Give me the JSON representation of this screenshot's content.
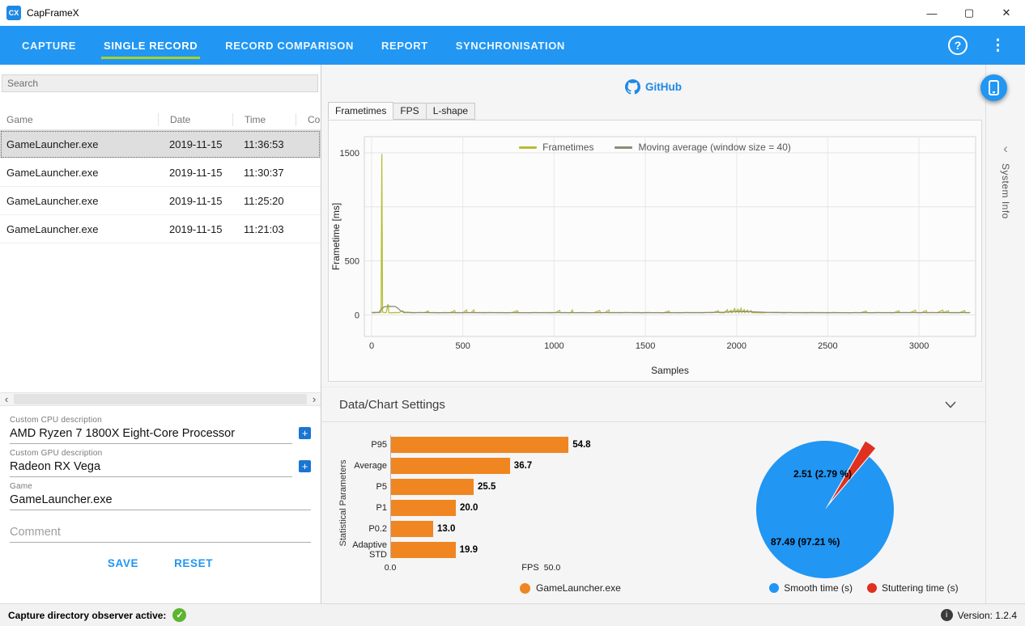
{
  "window": {
    "title": "CapFrameX",
    "icon_text": "CX"
  },
  "icons": {
    "minimize": "—",
    "maximize": "▢",
    "close": "✕",
    "help": "?",
    "menu": "⋮",
    "plus": "+",
    "scroll_left": "‹",
    "scroll_right": "›",
    "collapse_left": "‹",
    "check": "✓",
    "info": "i"
  },
  "colors": {
    "nav_blue": "#2196f3",
    "active_underline": "#a8d324",
    "link_blue": "#1e88e5",
    "bar_orange": "#ef8621",
    "pie_blue": "#2196f3",
    "pie_red": "#e03020",
    "frametimes_line": "#b6bd38",
    "moving_avg_line": "#8d8b78"
  },
  "nav": {
    "tabs": [
      {
        "label": "CAPTURE",
        "active": false
      },
      {
        "label": "SINGLE RECORD",
        "active": true
      },
      {
        "label": "RECORD COMPARISON",
        "active": false
      },
      {
        "label": "REPORT",
        "active": false
      },
      {
        "label": "SYNCHRONISATION",
        "active": false
      }
    ]
  },
  "sidebar": {
    "search_placeholder": "Search",
    "table": {
      "columns": [
        "Game",
        "Date",
        "Time",
        "Co"
      ],
      "rows": [
        {
          "game": "GameLauncher.exe",
          "date": "2019-11-15",
          "time": "11:36:53",
          "selected": true
        },
        {
          "game": "GameLauncher.exe",
          "date": "2019-11-15",
          "time": "11:30:37",
          "selected": false
        },
        {
          "game": "GameLauncher.exe",
          "date": "2019-11-15",
          "time": "11:25:20",
          "selected": false
        },
        {
          "game": "GameLauncher.exe",
          "date": "2019-11-15",
          "time": "11:21:03",
          "selected": false
        }
      ]
    },
    "form": {
      "cpu_label": "Custom CPU description",
      "cpu_value": "AMD Ryzen 7 1800X Eight-Core Processor",
      "gpu_label": "Custom GPU description",
      "gpu_value": "Radeon RX Vega",
      "game_label": "Game",
      "game_value": "GameLauncher.exe",
      "comment_placeholder": "Comment",
      "save_label": "SAVE",
      "reset_label": "RESET"
    }
  },
  "statusbar": {
    "observer_text": "Capture directory observer active:",
    "version_text": "Version: 1.2.4"
  },
  "main": {
    "github_label": "GitHub",
    "chart_tabs": [
      "Frametimes",
      "FPS",
      "L-shape"
    ],
    "settings_header": "Data/Chart Settings",
    "system_info_label": "System Info"
  },
  "chart_data": [
    {
      "type": "line",
      "xlabel": "Samples",
      "ylabel": "Frametime [ms]",
      "xlim": [
        -40,
        3310
      ],
      "ylim": [
        -200,
        1650
      ],
      "xticks": [
        0,
        500,
        1000,
        1500,
        2000,
        2500,
        3000
      ],
      "yticks": [
        {
          "value": 0,
          "label": "0"
        },
        {
          "value": 500,
          "label": "500"
        },
        {
          "value": 1000,
          "label": ""
        },
        {
          "value": 1500,
          "label": "1500"
        }
      ],
      "legend_position": "top-center",
      "grid": true,
      "series": [
        {
          "name": "Frametimes",
          "color": "#b6bd38",
          "points": [
            [
              0,
              21
            ],
            [
              15,
              19
            ],
            [
              30,
              22
            ],
            [
              45,
              20
            ],
            [
              52,
              24
            ],
            [
              56,
              1490
            ],
            [
              60,
              28
            ],
            [
              68,
              20
            ],
            [
              80,
              22
            ],
            [
              90,
              100
            ],
            [
              94,
              21
            ],
            [
              110,
              19
            ],
            [
              130,
              22
            ],
            [
              150,
              20
            ],
            [
              170,
              38
            ],
            [
              174,
              20
            ],
            [
              200,
              21
            ],
            [
              230,
              19
            ],
            [
              260,
              22
            ],
            [
              290,
              20
            ],
            [
              310,
              36
            ],
            [
              314,
              20
            ],
            [
              340,
              21
            ],
            [
              370,
              19
            ],
            [
              400,
              22
            ],
            [
              430,
              20
            ],
            [
              455,
              40
            ],
            [
              459,
              20
            ],
            [
              480,
              21
            ],
            [
              500,
              19
            ],
            [
              520,
              44
            ],
            [
              524,
              20
            ],
            [
              545,
              21
            ],
            [
              560,
              46
            ],
            [
              564,
              20
            ],
            [
              590,
              21
            ],
            [
              620,
              19
            ],
            [
              650,
              22
            ],
            [
              680,
              20
            ],
            [
              710,
              21
            ],
            [
              740,
              19
            ],
            [
              770,
              22
            ],
            [
              800,
              38
            ],
            [
              804,
              20
            ],
            [
              830,
              21
            ],
            [
              860,
              19
            ],
            [
              890,
              22
            ],
            [
              920,
              20
            ],
            [
              950,
              21
            ],
            [
              980,
              19
            ],
            [
              1010,
              22
            ],
            [
              1030,
              42
            ],
            [
              1034,
              20
            ],
            [
              1060,
              21
            ],
            [
              1090,
              19
            ],
            [
              1100,
              45
            ],
            [
              1104,
              21
            ],
            [
              1130,
              20
            ],
            [
              1160,
              22
            ],
            [
              1190,
              20
            ],
            [
              1220,
              21
            ],
            [
              1250,
              40
            ],
            [
              1254,
              20
            ],
            [
              1280,
              22
            ],
            [
              1300,
              44
            ],
            [
              1304,
              20
            ],
            [
              1330,
              21
            ],
            [
              1360,
              19
            ],
            [
              1390,
              22
            ],
            [
              1420,
              20
            ],
            [
              1450,
              21
            ],
            [
              1480,
              19
            ],
            [
              1510,
              22
            ],
            [
              1540,
              20
            ],
            [
              1570,
              21
            ],
            [
              1600,
              19
            ],
            [
              1630,
              36
            ],
            [
              1634,
              20
            ],
            [
              1660,
              21
            ],
            [
              1690,
              19
            ],
            [
              1720,
              22
            ],
            [
              1750,
              20
            ],
            [
              1780,
              21
            ],
            [
              1810,
              19
            ],
            [
              1840,
              22
            ],
            [
              1870,
              20
            ],
            [
              1900,
              38
            ],
            [
              1904,
              21
            ],
            [
              1930,
              19
            ],
            [
              1950,
              48
            ],
            [
              1954,
              22
            ],
            [
              1970,
              42
            ],
            [
              1974,
              20
            ],
            [
              1990,
              58
            ],
            [
              1994,
              24
            ],
            [
              2008,
              52
            ],
            [
              2012,
              21
            ],
            [
              2025,
              60
            ],
            [
              2029,
              22
            ],
            [
              2042,
              48
            ],
            [
              2046,
              20
            ],
            [
              2060,
              44
            ],
            [
              2064,
              21
            ],
            [
              2080,
              40
            ],
            [
              2084,
              20
            ],
            [
              2110,
              21
            ],
            [
              2140,
              19
            ],
            [
              2170,
              22
            ],
            [
              2200,
              20
            ],
            [
              2230,
              21
            ],
            [
              2260,
              19
            ],
            [
              2290,
              22
            ],
            [
              2320,
              20
            ],
            [
              2350,
              21
            ],
            [
              2380,
              19
            ],
            [
              2410,
              22
            ],
            [
              2440,
              20
            ],
            [
              2470,
              21
            ],
            [
              2500,
              19
            ],
            [
              2530,
              22
            ],
            [
              2560,
              20
            ],
            [
              2590,
              21
            ],
            [
              2620,
              19
            ],
            [
              2650,
              22
            ],
            [
              2680,
              20
            ],
            [
              2710,
              35
            ],
            [
              2714,
              21
            ],
            [
              2740,
              19
            ],
            [
              2770,
              22
            ],
            [
              2800,
              20
            ],
            [
              2830,
              21
            ],
            [
              2860,
              19
            ],
            [
              2890,
              38
            ],
            [
              2894,
              20
            ],
            [
              2920,
              22
            ],
            [
              2950,
              20
            ],
            [
              2980,
              42
            ],
            [
              2984,
              21
            ],
            [
              3010,
              19
            ],
            [
              3040,
              40
            ],
            [
              3044,
              20
            ],
            [
              3070,
              22
            ],
            [
              3100,
              20
            ],
            [
              3130,
              44
            ],
            [
              3134,
              21
            ],
            [
              3160,
              38
            ],
            [
              3164,
              20
            ],
            [
              3190,
              21
            ],
            [
              3220,
              19
            ],
            [
              3250,
              40
            ],
            [
              3254,
              20
            ],
            [
              3280,
              21
            ]
          ]
        },
        {
          "name": "Moving average (window size = 40)",
          "color": "#8d8b78",
          "points": [
            [
              0,
              22
            ],
            [
              40,
              23
            ],
            [
              56,
              58
            ],
            [
              70,
              76
            ],
            [
              100,
              79
            ],
            [
              130,
              77
            ],
            [
              145,
              60
            ],
            [
              160,
              35
            ],
            [
              180,
              25
            ],
            [
              220,
              22
            ],
            [
              300,
              21
            ],
            [
              400,
              20
            ],
            [
              600,
              21
            ],
            [
              800,
              20
            ],
            [
              1000,
              21
            ],
            [
              1200,
              20
            ],
            [
              1400,
              21
            ],
            [
              1600,
              20
            ],
            [
              1800,
              21
            ],
            [
              1930,
              24
            ],
            [
              1990,
              30
            ],
            [
              2050,
              31
            ],
            [
              2100,
              27
            ],
            [
              2160,
              23
            ],
            [
              2300,
              21
            ],
            [
              2600,
              20
            ],
            [
              2900,
              21
            ],
            [
              3280,
              21
            ]
          ]
        }
      ]
    },
    {
      "type": "bar",
      "orientation": "horizontal",
      "categories": [
        "P95",
        "Average",
        "P5",
        "P1",
        "P0.2",
        "Adaptive STD"
      ],
      "values": [
        54.8,
        36.7,
        25.5,
        20.0,
        13.0,
        19.9
      ],
      "value_labels": [
        "54.8",
        "36.7",
        "25.5",
        "20.0",
        "13.0",
        "19.9"
      ],
      "xlabel": "FPS",
      "ylabel": "Statistical Parameters",
      "xlim": [
        0,
        87
      ],
      "xticks": [
        {
          "value": 0,
          "label": "0.0"
        },
        {
          "value": 50,
          "label": "50.0"
        }
      ],
      "bar_color": "#ef8621",
      "legend": [
        {
          "label": "GameLauncher.exe",
          "color": "#ef8621"
        }
      ]
    },
    {
      "type": "pie",
      "slices": [
        {
          "label": "Smooth time (s)",
          "value": 87.49,
          "percent": 97.21,
          "display": "87.49 (97.21 %)",
          "color": "#2196f3"
        },
        {
          "label": "Stuttering time (s)",
          "value": 2.51,
          "percent": 2.79,
          "display": "2.51 (2.79 %)",
          "color": "#e03020"
        }
      ],
      "exploded_slice_index": 1,
      "explode_angle_deg": 55,
      "explode_offset": 13,
      "radius": 85
    }
  ]
}
